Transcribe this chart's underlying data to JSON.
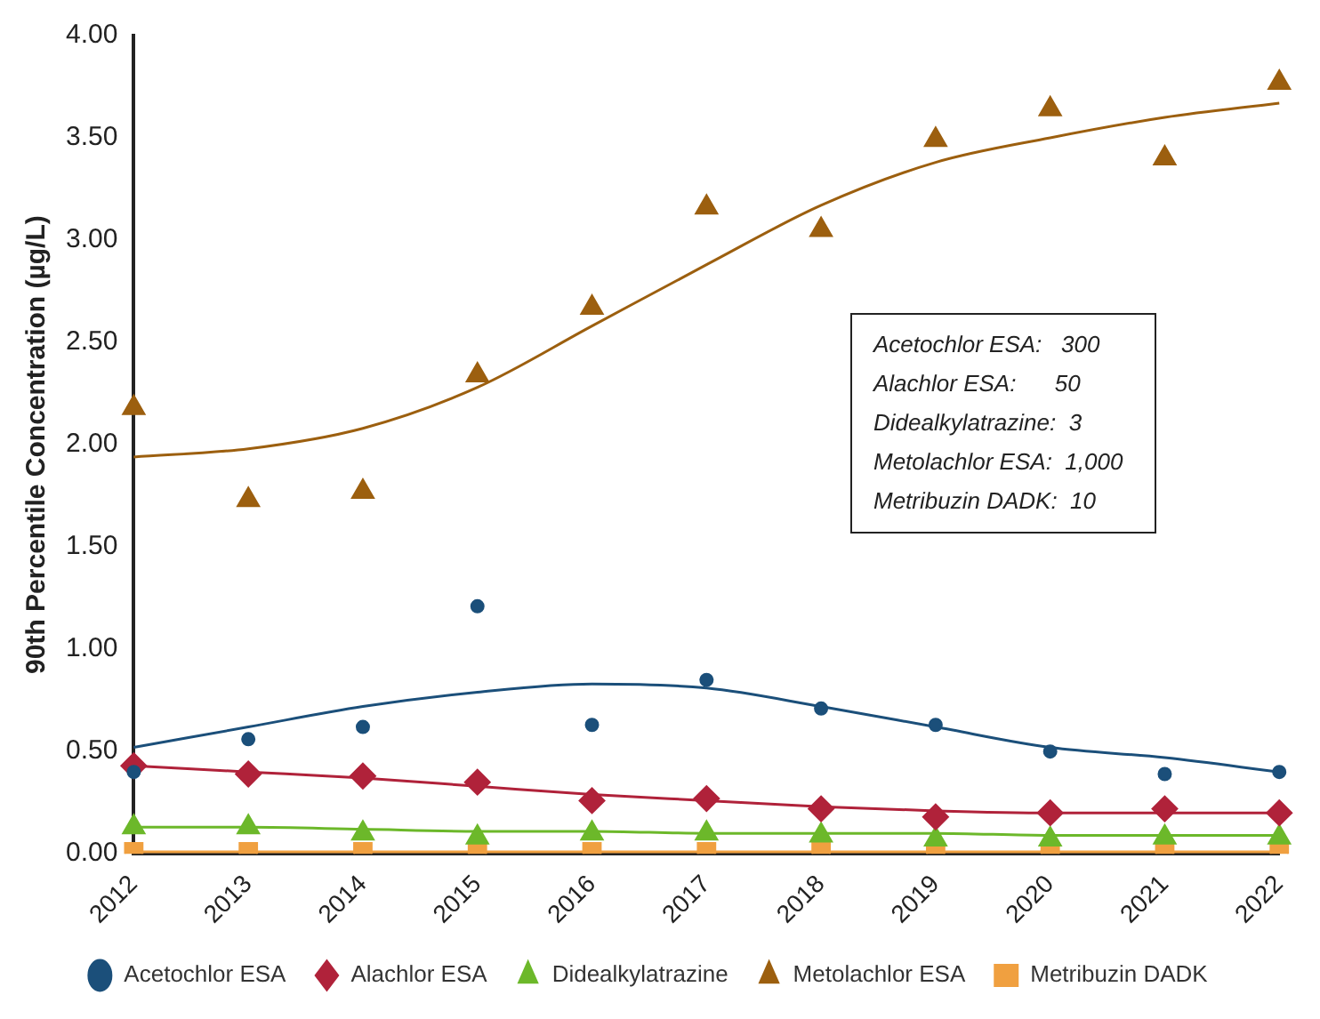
{
  "chart_data": {
    "type": "scatter",
    "ylabel": "90th Percentile Concentration (µg/L)",
    "categories": [
      "2012",
      "2013",
      "2014",
      "2015",
      "2016",
      "2017",
      "2018",
      "2019",
      "2020",
      "2021",
      "2022"
    ],
    "series": [
      {
        "name": "Acetochlor ESA",
        "color": "#1b4f7a",
        "marker": "circle",
        "values": [
          0.4,
          0.56,
          0.62,
          1.21,
          0.63,
          0.85,
          0.71,
          0.63,
          0.5,
          0.39,
          0.4
        ]
      },
      {
        "name": "Alachlor ESA",
        "color": "#b0223a",
        "marker": "diamond",
        "values": [
          0.43,
          0.39,
          0.38,
          0.35,
          0.26,
          0.27,
          0.22,
          0.18,
          0.2,
          0.22,
          0.2
        ]
      },
      {
        "name": "Didealkylatrazine",
        "color": "#6cb82a",
        "marker": "triangle",
        "values": [
          0.13,
          0.13,
          0.1,
          0.08,
          0.1,
          0.1,
          0.09,
          0.07,
          0.07,
          0.08,
          0.08
        ]
      },
      {
        "name": "Metolachlor ESA",
        "color": "#9c5f0f",
        "marker": "triangle",
        "values": [
          2.18,
          1.73,
          1.77,
          2.34,
          2.67,
          3.16,
          3.05,
          3.49,
          3.64,
          3.4,
          3.77
        ]
      },
      {
        "name": "Metribuzin DADK",
        "color": "#f0a040",
        "marker": "square",
        "values": [
          0.01,
          0.01,
          0.01,
          0.01,
          0.01,
          0.01,
          0.01,
          0.01,
          0.01,
          0.01,
          0.01
        ]
      },
      {
        "type": "line",
        "color": "#1b4f7a",
        "marker": "none",
        "values": [
          0.52,
          0.62,
          0.72,
          0.79,
          0.83,
          0.81,
          0.72,
          0.62,
          0.52,
          0.47,
          0.4
        ]
      },
      {
        "type": "line",
        "color": "#b0223a",
        "marker": "none",
        "values": [
          0.43,
          0.4,
          0.37,
          0.33,
          0.29,
          0.26,
          0.23,
          0.21,
          0.2,
          0.2,
          0.2
        ]
      },
      {
        "type": "line",
        "color": "#6cb82a",
        "marker": "none",
        "values": [
          0.13,
          0.13,
          0.12,
          0.11,
          0.11,
          0.1,
          0.1,
          0.1,
          0.09,
          0.09,
          0.09
        ]
      },
      {
        "type": "line",
        "color": "#9c5f0f",
        "marker": "none",
        "values": [
          1.94,
          1.98,
          2.08,
          2.28,
          2.58,
          2.88,
          3.17,
          3.38,
          3.5,
          3.6,
          3.67
        ]
      },
      {
        "type": "line",
        "color": "#f0a040",
        "marker": "none",
        "values": [
          0.01,
          0.01,
          0.01,
          0.01,
          0.01,
          0.01,
          0.01,
          0.01,
          0.01,
          0.01,
          0.01
        ]
      }
    ],
    "ylim": [
      0,
      4
    ],
    "yticks": [
      {
        "value": 0,
        "label": "0.00"
      },
      {
        "value": 0.5,
        "label": "0.50"
      },
      {
        "value": 1,
        "label": "1.00"
      },
      {
        "value": 1.5,
        "label": "1.50"
      },
      {
        "value": 2,
        "label": "2.00"
      },
      {
        "value": 2.5,
        "label": "2.50"
      },
      {
        "value": 3,
        "label": "3.00"
      },
      {
        "value": 3.5,
        "label": "3.50"
      },
      {
        "value": 4,
        "label": "4.00"
      }
    ],
    "grid": false,
    "legend": "bottom",
    "annotations": [
      "Acetochlor ESA:   300",
      "Alachlor ESA:      50",
      "Didealkylatrazine:  3",
      "Metolachlor ESA:  1,000",
      "Metribuzin DADK:  10"
    ]
  }
}
